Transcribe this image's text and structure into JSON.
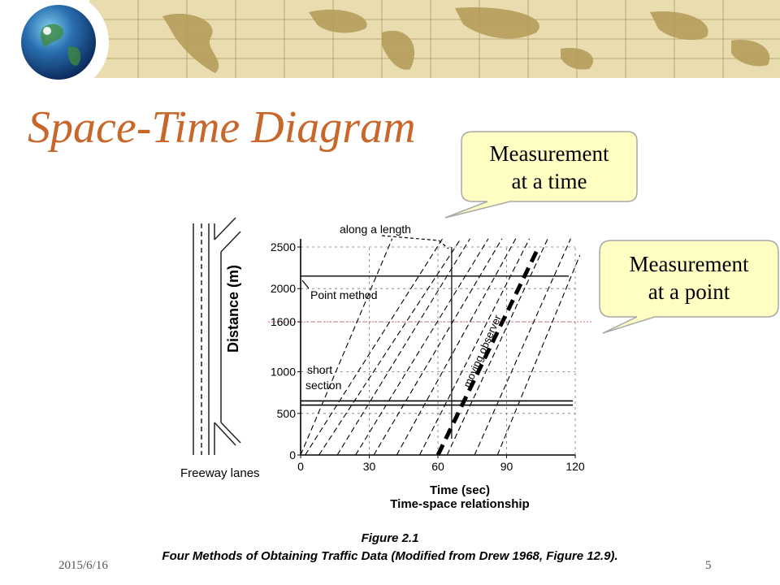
{
  "slide": {
    "title": "Space-Time Diagram",
    "date": "2015/6/16",
    "page_number": "5",
    "title_color": "#c8672a",
    "callout_fill": "#ffffc4",
    "callout_border": "#a8a8a8"
  },
  "callouts": [
    {
      "line1": "Measurement",
      "line2": "at a time"
    },
    {
      "line1": "Measurement",
      "line2": "at a point"
    }
  ],
  "figure": {
    "left_label": "Freeway lanes",
    "annotations": {
      "along_length": "along a length",
      "point_method": "Point method",
      "short": "short",
      "section": "section",
      "moving_observer": "moving observer"
    },
    "caption_line1": "Figure 2.1",
    "caption_line2": "Four Methods of Obtaining Traffic Data (Modified from Drew 1968, Figure 12.9)."
  },
  "chart_data": {
    "type": "line",
    "xlabel": "Time (sec)",
    "subtitle": "Time-space relationship",
    "ylabel": "Distance (m)",
    "xlim": [
      0,
      120
    ],
    "ylim": [
      0,
      2500
    ],
    "x_ticks": [
      "0",
      "30",
      "60",
      "90",
      "120"
    ],
    "y_ticks": [
      "0",
      "500",
      "1000",
      "1600",
      "2000",
      "2500"
    ],
    "y_tick_values": [
      0,
      500,
      1000,
      1600,
      2000,
      2500
    ],
    "reference_lines": {
      "point_method_distance": 2150,
      "short_section_lower": 600,
      "short_section_upper": 650,
      "measurement_point_distance": 1600,
      "length_snapshot_time": 66
    },
    "series": [
      {
        "values": [
          [
            0,
            0
          ],
          [
            40,
            2600
          ]
        ]
      },
      {
        "values": [
          [
            2,
            0
          ],
          [
            62,
            2600
          ]
        ]
      },
      {
        "values": [
          [
            8,
            0
          ],
          [
            70,
            2600
          ]
        ]
      },
      {
        "values": [
          [
            16,
            0
          ],
          [
            74,
            2600
          ]
        ]
      },
      {
        "values": [
          [
            24,
            0
          ],
          [
            82,
            2600
          ]
        ]
      },
      {
        "values": [
          [
            32,
            0
          ],
          [
            88,
            2600
          ]
        ]
      },
      {
        "values": [
          [
            42,
            0
          ],
          [
            94,
            2600
          ]
        ]
      },
      {
        "values": [
          [
            52,
            0
          ],
          [
            100,
            2600
          ]
        ]
      },
      {
        "values": [
          [
            64,
            0
          ],
          [
            108,
            2600
          ]
        ]
      },
      {
        "values": [
          [
            76,
            0
          ],
          [
            118,
            2600
          ]
        ]
      },
      {
        "values": [
          [
            86,
            0
          ],
          [
            122,
            2400
          ]
        ]
      },
      {
        "values": [
          [
            60,
            0
          ],
          [
            104,
            2500
          ]
        ]
      }
    ]
  }
}
